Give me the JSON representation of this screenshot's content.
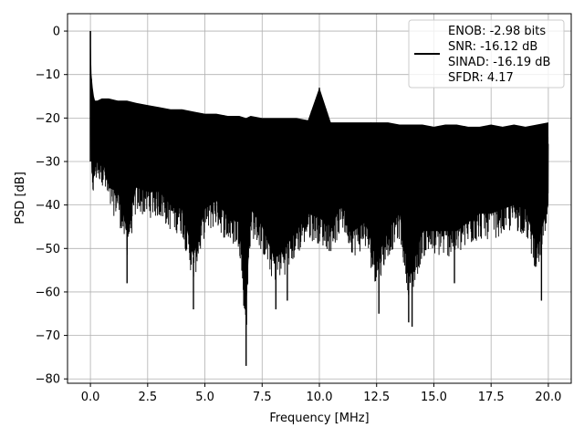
{
  "chart_data": {
    "type": "line",
    "title": "",
    "xlabel": "Frequency [MHz]",
    "ylabel": "PSD [dB]",
    "xlim": [
      -1.0,
      21.0
    ],
    "ylim": [
      -81.0,
      4.0
    ],
    "xticks": [
      0.0,
      2.5,
      5.0,
      7.5,
      10.0,
      12.5,
      15.0,
      17.5,
      20.0
    ],
    "xtick_labels": [
      "0.0",
      "2.5",
      "5.0",
      "7.5",
      "10.0",
      "12.5",
      "15.0",
      "17.5",
      "20.0"
    ],
    "yticks": [
      0,
      -10,
      -20,
      -30,
      -40,
      -50,
      -60,
      -70,
      -80
    ],
    "ytick_labels": [
      "0",
      "−10",
      "−20",
      "−30",
      "−40",
      "−50",
      "−60",
      "−70",
      "−80"
    ],
    "grid": true,
    "legend_position": "top-right",
    "legend_lines": [
      "ENOB: -2.98 bits",
      "SNR: -16.12 dB",
      "SINAD: -16.19 dB",
      "SFDR: 4.17"
    ],
    "series": [
      {
        "color": "#000000",
        "x": [
          0.0,
          0.05,
          0.1,
          0.15,
          0.2,
          0.3,
          0.5,
          0.8,
          1.2,
          1.6,
          2.0,
          2.5,
          3.0,
          3.5,
          4.0,
          4.5,
          5.0,
          5.5,
          6.0,
          6.5,
          6.8,
          7.0,
          7.5,
          8.0,
          8.5,
          9.0,
          9.5,
          10.0,
          10.5,
          11.0,
          11.5,
          12.0,
          12.5,
          13.0,
          13.5,
          13.9,
          14.0,
          14.5,
          15.0,
          15.5,
          16.0,
          16.5,
          17.0,
          17.5,
          18.0,
          18.5,
          19.0,
          19.5,
          20.0
        ],
        "upper": [
          0,
          -10,
          -13,
          -15,
          -16,
          -16,
          -15.5,
          -15.5,
          -16,
          -16,
          -16.5,
          -17,
          -17.5,
          -18,
          -18,
          -18.5,
          -19,
          -19,
          -19.5,
          -19.5,
          -20,
          -19.5,
          -20,
          -20,
          -20,
          -20,
          -20.5,
          -13,
          -21,
          -21,
          -21,
          -21,
          -21,
          -21,
          -21.5,
          -21.5,
          -21.5,
          -21.5,
          -22,
          -21.5,
          -21.5,
          -22,
          -22,
          -21.5,
          -22,
          -21.5,
          -22,
          -21.5,
          -21
        ],
        "lower": [
          -30,
          -45,
          -44,
          -46,
          -42,
          -41,
          -41,
          -48,
          -49,
          -58,
          -48,
          -49,
          -49,
          -52,
          -53,
          -64,
          -53,
          -51,
          -55,
          -56,
          -77,
          -53,
          -57,
          -64,
          -62,
          -58,
          -54,
          -55,
          -57,
          -52,
          -58,
          -56,
          -65,
          -58,
          -54,
          -67,
          -68,
          -58,
          -58,
          -58,
          -58,
          -56,
          -54,
          -54,
          -53,
          -52,
          -53,
          -62,
          -52
        ],
        "spikes": [
          {
            "x": 1.6,
            "y": -58
          },
          {
            "x": 4.5,
            "y": -64
          },
          {
            "x": 6.8,
            "y": -77
          },
          {
            "x": 8.1,
            "y": -64
          },
          {
            "x": 8.6,
            "y": -62
          },
          {
            "x": 10.0,
            "y": -13
          },
          {
            "x": 12.6,
            "y": -65
          },
          {
            "x": 13.9,
            "y": -67
          },
          {
            "x": 14.05,
            "y": -68
          },
          {
            "x": 15.9,
            "y": -58
          },
          {
            "x": 19.7,
            "y": -62
          }
        ]
      }
    ]
  }
}
